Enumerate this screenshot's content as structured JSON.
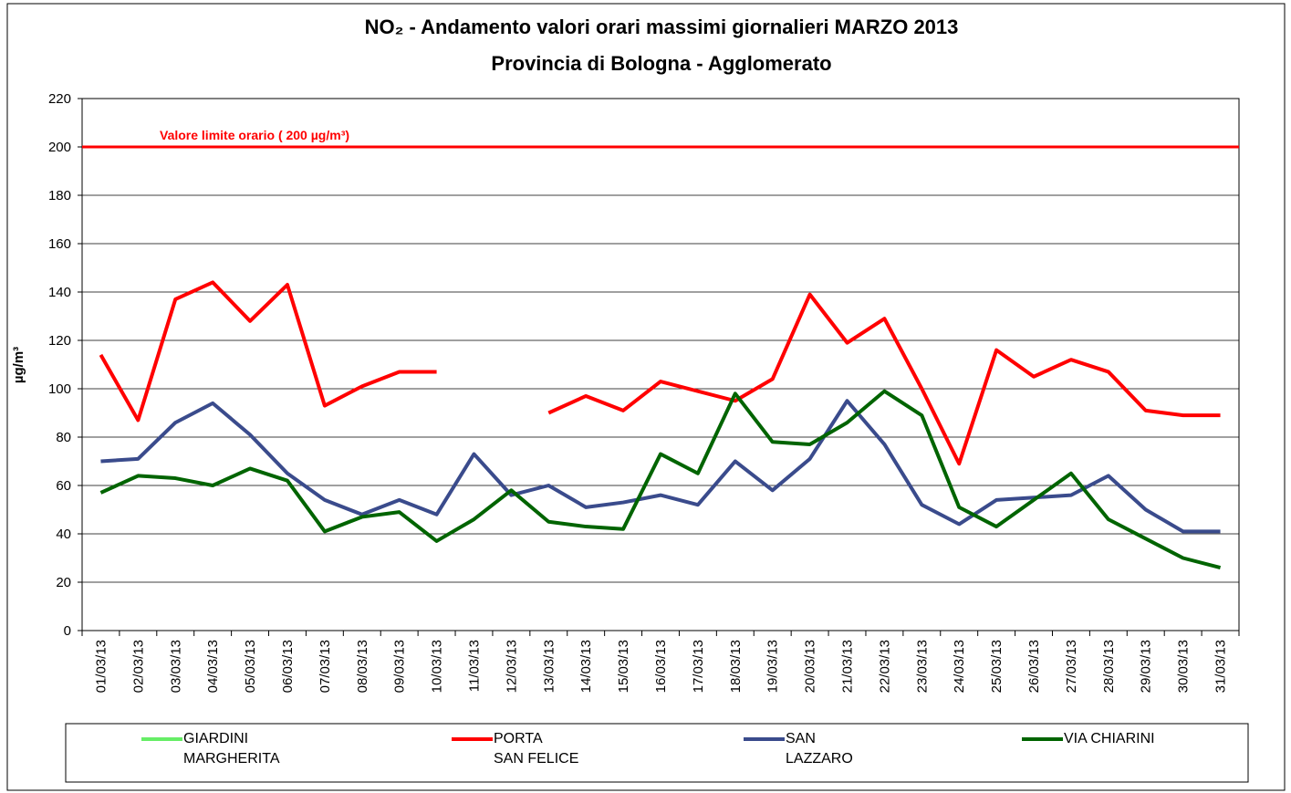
{
  "chart_data": {
    "type": "line",
    "title_lines": [
      "NO₂ - Andamento valori orari massimi giornalieri MARZO 2013",
      "Provincia di Bologna - Agglomerato"
    ],
    "y_label": "µg/m³",
    "reference_line": {
      "value": 200,
      "label": "Valore limite orario ( 200 µg/m³)",
      "color": "#ff0000"
    },
    "categories": [
      "01/03/13",
      "02/03/13",
      "03/03/13",
      "04/03/13",
      "05/03/13",
      "06/03/13",
      "07/03/13",
      "08/03/13",
      "09/03/13",
      "10/03/13",
      "11/03/13",
      "12/03/13",
      "13/03/13",
      "14/03/13",
      "15/03/13",
      "16/03/13",
      "17/03/13",
      "18/03/13",
      "19/03/13",
      "20/03/13",
      "21/03/13",
      "22/03/13",
      "23/03/13",
      "24/03/13",
      "25/03/13",
      "26/03/13",
      "27/03/13",
      "28/03/13",
      "29/03/13",
      "30/03/13",
      "31/03/13"
    ],
    "series": [
      {
        "name": "GIARDINI\nMARGHERITA",
        "color": "#66ee66",
        "values": [
          null,
          null,
          null,
          null,
          null,
          null,
          null,
          null,
          null,
          null,
          null,
          null,
          null,
          null,
          null,
          null,
          null,
          null,
          null,
          null,
          null,
          null,
          null,
          null,
          null,
          null,
          null,
          null,
          null,
          null,
          null
        ]
      },
      {
        "name": "PORTA\nSAN FELICE",
        "color": "#ff0000",
        "values": [
          114,
          87,
          137,
          144,
          128,
          143,
          93,
          101,
          107,
          107,
          null,
          null,
          90,
          97,
          91,
          103,
          99,
          95,
          104,
          139,
          119,
          129,
          100,
          69,
          116,
          105,
          112,
          107,
          91,
          89,
          89
        ]
      },
      {
        "name": "SAN\nLAZZARO",
        "color": "#3a4b8c",
        "values": [
          70,
          71,
          86,
          94,
          81,
          65,
          54,
          48,
          54,
          48,
          73,
          56,
          60,
          51,
          53,
          56,
          52,
          70,
          58,
          71,
          95,
          77,
          52,
          44,
          54,
          55,
          56,
          64,
          50,
          41,
          41
        ]
      },
      {
        "name": "VIA CHIARINI",
        "color": "#006400",
        "values": [
          57,
          64,
          63,
          60,
          67,
          62,
          41,
          47,
          49,
          37,
          46,
          58,
          45,
          43,
          42,
          73,
          65,
          98,
          78,
          77,
          86,
          99,
          89,
          51,
          43,
          54,
          65,
          46,
          38,
          30,
          26
        ]
      }
    ],
    "ylim": [
      0,
      220
    ],
    "yticks": [
      0,
      20,
      40,
      60,
      80,
      100,
      120,
      140,
      160,
      180,
      200,
      220
    ],
    "grid": true
  }
}
